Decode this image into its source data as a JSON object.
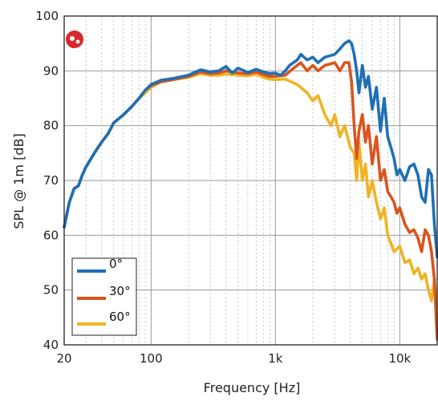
{
  "chart_data": {
    "type": "line",
    "title": "",
    "xlabel": "Frequency [Hz]",
    "ylabel": "SPL @ 1m [dB]",
    "xscale": "log",
    "xlim": [
      20,
      20000
    ],
    "ylim": [
      40,
      100
    ],
    "x_ticks": [
      {
        "value": 20,
        "label": "20"
      },
      {
        "value": 100,
        "label": "100"
      },
      {
        "value": 1000,
        "label": "1k"
      },
      {
        "value": 10000,
        "label": "10k"
      }
    ],
    "y_ticks": [
      40,
      50,
      60,
      70,
      80,
      90,
      100
    ],
    "grid": true,
    "legend_position": "bottom-left",
    "series": [
      {
        "name": "0°",
        "color": "#1f6fb5",
        "points": [
          [
            20,
            61.5
          ],
          [
            22,
            66
          ],
          [
            24,
            68.5
          ],
          [
            26,
            69
          ],
          [
            28,
            71
          ],
          [
            30,
            72.5
          ],
          [
            35,
            75
          ],
          [
            40,
            77
          ],
          [
            45,
            78.5
          ],
          [
            50,
            80.5
          ],
          [
            60,
            82
          ],
          [
            70,
            83.5
          ],
          [
            80,
            85
          ],
          [
            90,
            86.5
          ],
          [
            100,
            87.5
          ],
          [
            120,
            88.3
          ],
          [
            150,
            88.6
          ],
          [
            200,
            89.2
          ],
          [
            250,
            90.2
          ],
          [
            300,
            89.8
          ],
          [
            350,
            90
          ],
          [
            400,
            90.8
          ],
          [
            450,
            89.6
          ],
          [
            500,
            90.5
          ],
          [
            600,
            89.7
          ],
          [
            700,
            90.3
          ],
          [
            800,
            89.8
          ],
          [
            900,
            89.5
          ],
          [
            1000,
            89.6
          ],
          [
            1100,
            89.2
          ],
          [
            1200,
            90
          ],
          [
            1300,
            91
          ],
          [
            1500,
            92
          ],
          [
            1600,
            93
          ],
          [
            1800,
            92
          ],
          [
            2000,
            92.5
          ],
          [
            2200,
            91.5
          ],
          [
            2500,
            92.5
          ],
          [
            3000,
            93
          ],
          [
            3300,
            94
          ],
          [
            3600,
            95
          ],
          [
            3900,
            95.5
          ],
          [
            4100,
            95
          ],
          [
            4300,
            93
          ],
          [
            4500,
            90
          ],
          [
            4700,
            86
          ],
          [
            5000,
            91
          ],
          [
            5300,
            87
          ],
          [
            5600,
            89
          ],
          [
            6000,
            83
          ],
          [
            6500,
            87
          ],
          [
            7000,
            79
          ],
          [
            7500,
            85
          ],
          [
            8000,
            78
          ],
          [
            8500,
            76
          ],
          [
            9000,
            74
          ],
          [
            9500,
            71
          ],
          [
            10000,
            72
          ],
          [
            11000,
            70
          ],
          [
            12000,
            72.5
          ],
          [
            13000,
            73
          ],
          [
            14000,
            71
          ],
          [
            15000,
            67
          ],
          [
            16000,
            66
          ],
          [
            17000,
            72
          ],
          [
            18000,
            71
          ],
          [
            19000,
            62
          ],
          [
            20000,
            56
          ]
        ]
      },
      {
        "name": "30°",
        "color": "#d9541e",
        "points": [
          [
            20,
            61.5
          ],
          [
            22,
            66
          ],
          [
            24,
            68.5
          ],
          [
            26,
            69
          ],
          [
            28,
            71
          ],
          [
            30,
            72.5
          ],
          [
            35,
            75
          ],
          [
            40,
            77
          ],
          [
            45,
            78.5
          ],
          [
            50,
            80.5
          ],
          [
            60,
            82
          ],
          [
            70,
            83.5
          ],
          [
            80,
            85
          ],
          [
            90,
            86.5
          ],
          [
            100,
            87.3
          ],
          [
            120,
            88
          ],
          [
            150,
            88.4
          ],
          [
            200,
            89
          ],
          [
            250,
            89.8
          ],
          [
            300,
            89.5
          ],
          [
            350,
            89.6
          ],
          [
            400,
            90
          ],
          [
            500,
            89.6
          ],
          [
            600,
            89.5
          ],
          [
            700,
            89.8
          ],
          [
            800,
            89.3
          ],
          [
            900,
            89
          ],
          [
            1000,
            89
          ],
          [
            1200,
            89.2
          ],
          [
            1400,
            90.5
          ],
          [
            1600,
            91.5
          ],
          [
            1800,
            90
          ],
          [
            2000,
            91
          ],
          [
            2200,
            90
          ],
          [
            2500,
            91
          ],
          [
            3000,
            91.5
          ],
          [
            3300,
            90
          ],
          [
            3600,
            91.5
          ],
          [
            3900,
            91.5
          ],
          [
            4100,
            88
          ],
          [
            4300,
            80
          ],
          [
            4500,
            74
          ],
          [
            4700,
            79
          ],
          [
            5000,
            82
          ],
          [
            5300,
            77
          ],
          [
            5600,
            80
          ],
          [
            6000,
            73
          ],
          [
            6500,
            78
          ],
          [
            7000,
            70
          ],
          [
            7500,
            72
          ],
          [
            8000,
            68
          ],
          [
            8500,
            67
          ],
          [
            9000,
            66
          ],
          [
            9500,
            64
          ],
          [
            10000,
            65
          ],
          [
            11000,
            62
          ],
          [
            12000,
            60.5
          ],
          [
            13000,
            61
          ],
          [
            14000,
            59.5
          ],
          [
            15000,
            57
          ],
          [
            16000,
            61
          ],
          [
            17000,
            60
          ],
          [
            18000,
            57
          ],
          [
            19000,
            52
          ],
          [
            20000,
            41
          ]
        ]
      },
      {
        "name": "60°",
        "color": "#f0b323",
        "points": [
          [
            20,
            61.5
          ],
          [
            22,
            66
          ],
          [
            24,
            68.5
          ],
          [
            26,
            69
          ],
          [
            28,
            71
          ],
          [
            30,
            72.5
          ],
          [
            35,
            75
          ],
          [
            40,
            77
          ],
          [
            45,
            78.5
          ],
          [
            50,
            80.5
          ],
          [
            60,
            82
          ],
          [
            70,
            83.5
          ],
          [
            80,
            85
          ],
          [
            90,
            86
          ],
          [
            100,
            87
          ],
          [
            120,
            88
          ],
          [
            150,
            88.4
          ],
          [
            200,
            88.8
          ],
          [
            250,
            89.5
          ],
          [
            300,
            89.2
          ],
          [
            350,
            89.2
          ],
          [
            400,
            89.4
          ],
          [
            500,
            89.2
          ],
          [
            600,
            89.1
          ],
          [
            700,
            89.4
          ],
          [
            800,
            88.8
          ],
          [
            900,
            88.5
          ],
          [
            1000,
            88.4
          ],
          [
            1200,
            88.5
          ],
          [
            1500,
            87.5
          ],
          [
            1800,
            86
          ],
          [
            2000,
            84.5
          ],
          [
            2200,
            85.5
          ],
          [
            2500,
            82
          ],
          [
            2800,
            80
          ],
          [
            3000,
            82
          ],
          [
            3300,
            78
          ],
          [
            3600,
            80
          ],
          [
            4000,
            76
          ],
          [
            4300,
            75
          ],
          [
            4500,
            70
          ],
          [
            4700,
            77
          ],
          [
            5000,
            70
          ],
          [
            5300,
            73
          ],
          [
            5600,
            67
          ],
          [
            6000,
            70
          ],
          [
            6500,
            66
          ],
          [
            7000,
            63
          ],
          [
            7500,
            65
          ],
          [
            8000,
            60
          ],
          [
            9000,
            57
          ],
          [
            10000,
            58
          ],
          [
            11000,
            55
          ],
          [
            12000,
            55.5
          ],
          [
            13000,
            53
          ],
          [
            14000,
            54
          ],
          [
            15000,
            52
          ],
          [
            16000,
            53
          ],
          [
            17000,
            50
          ],
          [
            18000,
            48
          ],
          [
            19000,
            52
          ],
          [
            20000,
            44
          ]
        ]
      }
    ]
  }
}
